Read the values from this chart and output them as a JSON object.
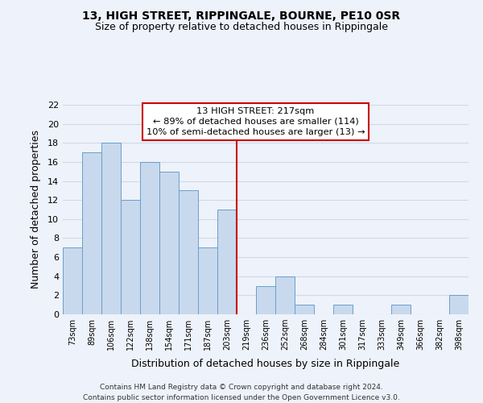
{
  "title": "13, HIGH STREET, RIPPINGALE, BOURNE, PE10 0SR",
  "subtitle": "Size of property relative to detached houses in Rippingale",
  "xlabel": "Distribution of detached houses by size in Rippingale",
  "ylabel": "Number of detached properties",
  "bar_labels": [
    "73sqm",
    "89sqm",
    "106sqm",
    "122sqm",
    "138sqm",
    "154sqm",
    "171sqm",
    "187sqm",
    "203sqm",
    "219sqm",
    "236sqm",
    "252sqm",
    "268sqm",
    "284sqm",
    "301sqm",
    "317sqm",
    "333sqm",
    "349sqm",
    "366sqm",
    "382sqm",
    "398sqm"
  ],
  "bar_values": [
    7,
    17,
    18,
    12,
    16,
    15,
    13,
    7,
    11,
    0,
    3,
    4,
    1,
    0,
    1,
    0,
    0,
    1,
    0,
    0,
    2
  ],
  "bar_color": "#c8d9ee",
  "bar_edge_color": "#6a9fc8",
  "ref_line_color": "#cc0000",
  "ylim": [
    0,
    22
  ],
  "yticks": [
    0,
    2,
    4,
    6,
    8,
    10,
    12,
    14,
    16,
    18,
    20,
    22
  ],
  "annotation_title": "13 HIGH STREET: 217sqm",
  "annotation_line1": "← 89% of detached houses are smaller (114)",
  "annotation_line2": "10% of semi-detached houses are larger (13) →",
  "annotation_box_color": "#ffffff",
  "annotation_box_edge": "#cc0000",
  "footer_line1": "Contains HM Land Registry data © Crown copyright and database right 2024.",
  "footer_line2": "Contains public sector information licensed under the Open Government Licence v3.0.",
  "background_color": "#eef2fa",
  "grid_color": "#d0d8e8",
  "title_fontsize": 10,
  "subtitle_fontsize": 9
}
